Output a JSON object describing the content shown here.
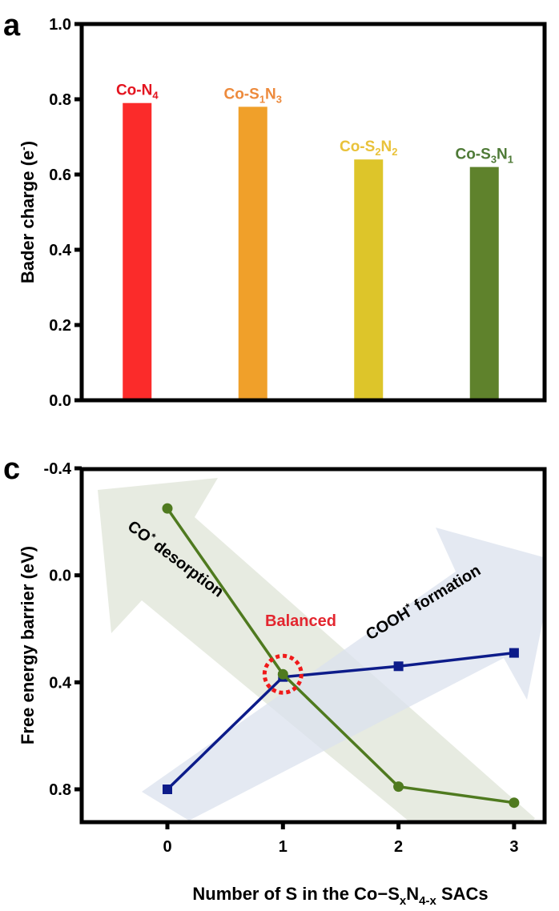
{
  "figure": {
    "panel_a_letter": "a",
    "panel_c_letter": "c"
  },
  "chart_data": [
    {
      "type": "bar",
      "panel": "a",
      "title": "",
      "xlabel": "",
      "ylabel": "Bader charge (e⁻)",
      "ylabel_main": "Bader charge (e",
      "ylabel_sup": "-",
      "ylabel_end": ")",
      "ylim": [
        0.0,
        1.0
      ],
      "yticks": [
        0.0,
        0.2,
        0.4,
        0.6,
        0.8,
        1.0
      ],
      "ytick_labels": [
        "0.0",
        "0.2",
        "0.4",
        "0.6",
        "0.8",
        "1.0"
      ],
      "grid": false,
      "categories": [
        "Co-N4",
        "Co-S1N3",
        "Co-S2N2",
        "Co-S3N1"
      ],
      "category_labels": [
        {
          "parts": [
            {
              "t": "Co-N",
              "sub": false
            },
            {
              "t": "4",
              "sub": true
            }
          ]
        },
        {
          "parts": [
            {
              "t": "Co-S",
              "sub": false
            },
            {
              "t": "1",
              "sub": true
            },
            {
              "t": "N",
              "sub": false
            },
            {
              "t": "3",
              "sub": true
            }
          ]
        },
        {
          "parts": [
            {
              "t": "Co-S",
              "sub": false
            },
            {
              "t": "2",
              "sub": true
            },
            {
              "t": "N",
              "sub": false
            },
            {
              "t": "2",
              "sub": true
            }
          ]
        },
        {
          "parts": [
            {
              "t": "Co-S",
              "sub": false
            },
            {
              "t": "3",
              "sub": true
            },
            {
              "t": "N",
              "sub": false
            },
            {
              "t": "1",
              "sub": true
            }
          ]
        }
      ],
      "values": [
        0.79,
        0.78,
        0.64,
        0.62
      ],
      "colors": [
        "#fb2b2a",
        "#f0a02a",
        "#ddc52a",
        "#5f822c"
      ],
      "label_colors": [
        "#e3141f",
        "#ed8a3c",
        "#e9c23a",
        "#4e7a36"
      ]
    },
    {
      "type": "line",
      "panel": "c",
      "title": "",
      "xlabel": "Number of S in the Co−SxN4-x SACs",
      "xlabel_parts": [
        {
          "t": "Number of S in the Co−S",
          "sub": false
        },
        {
          "t": "x",
          "sub": true
        },
        {
          "t": "N",
          "sub": false
        },
        {
          "t": "4-x",
          "sub": true
        },
        {
          "t": " SACs",
          "sub": false
        }
      ],
      "ylabel": "Free energy barrier (eV)",
      "x": [
        0,
        1,
        2,
        3
      ],
      "xticks": [
        0,
        1,
        2,
        3
      ],
      "xtick_labels": [
        "0",
        "1",
        "2",
        "3"
      ],
      "xlim": [
        -0.7,
        3.3
      ],
      "ylim": [
        -0.4,
        1.0
      ],
      "y_inverted": true,
      "yticks": [
        -0.4,
        0.0,
        0.4,
        0.8
      ],
      "ytick_labels": [
        "-0.4",
        "0.0",
        "0.4",
        "0.8"
      ],
      "grid": false,
      "series": [
        {
          "name": "CO* desorption",
          "marker": "circle",
          "color": "#4f7a1f",
          "values": [
            -0.25,
            0.37,
            0.79,
            0.85
          ]
        },
        {
          "name": "COOH* formation",
          "marker": "square",
          "color": "#0d1c8a",
          "values": [
            0.8,
            0.38,
            0.34,
            0.29
          ]
        }
      ],
      "annotations": {
        "co_desorption": {
          "main": "CO",
          "sup": "*",
          "rest": " desorption",
          "color": "#000000"
        },
        "cooh_formation": {
          "main": "COOH",
          "sup": "*",
          "rest": " formation",
          "color": "#000000"
        },
        "balanced": {
          "text": "Balanced",
          "color": "#e3262f",
          "x": 1,
          "y": 0.37
        },
        "green_arrow_color": "#e3e8dc",
        "blue_arrow_color": "#dbe1ee",
        "balanced_circle_color": "#f01a1a"
      }
    }
  ]
}
